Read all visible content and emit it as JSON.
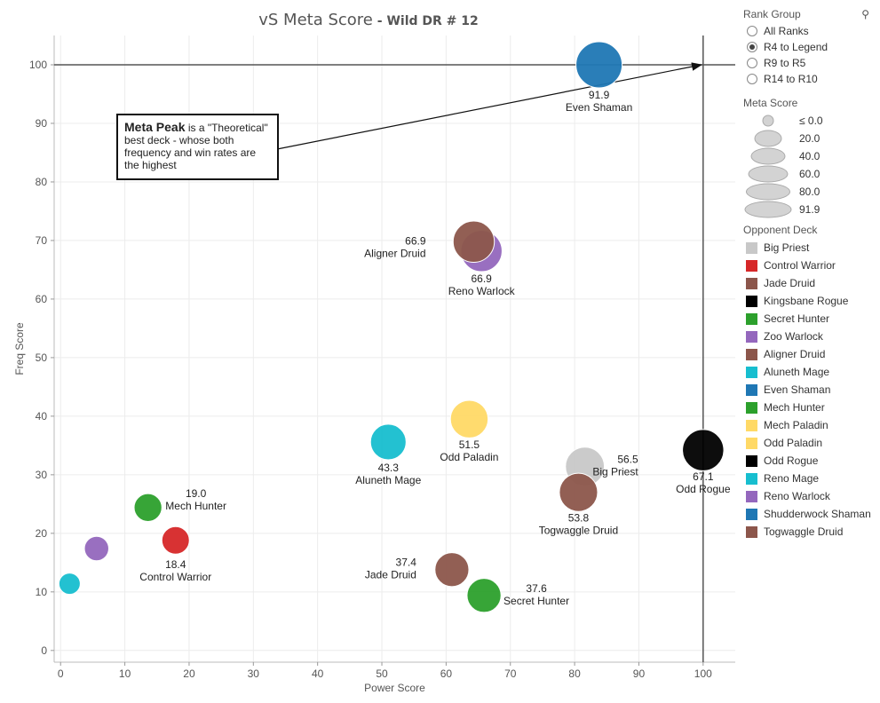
{
  "title": {
    "main": "vS Meta Score",
    "sub": " - Wild DR # 12"
  },
  "annotation": {
    "bold": "Meta Peak",
    "text": " is a \"Theoretical\" best deck - whose both frequency and win rates are the highest"
  },
  "legend": {
    "rank_group": {
      "title": "Rank Group",
      "options": [
        {
          "label": "All Ranks",
          "selected": false
        },
        {
          "label": "R4 to Legend",
          "selected": true
        },
        {
          "label": "R9 to R5",
          "selected": false
        },
        {
          "label": "R14 to R10",
          "selected": false
        }
      ]
    },
    "meta_score": {
      "title": "Meta Score",
      "entries": [
        "≤ 0.0",
        "20.0",
        "40.0",
        "60.0",
        "80.0",
        "91.9"
      ]
    },
    "opponent_deck": {
      "title": "Opponent Deck",
      "entries": [
        {
          "name": "Big Priest",
          "color": "#c8c8c8"
        },
        {
          "name": "Control Warrior",
          "color": "#d62728"
        },
        {
          "name": "Jade Druid",
          "color": "#8c564b"
        },
        {
          "name": "Kingsbane Rogue",
          "color": "#000000"
        },
        {
          "name": "Secret Hunter",
          "color": "#2ca02c"
        },
        {
          "name": "Zoo Warlock",
          "color": "#9467bd"
        },
        {
          "name": "Aligner Druid",
          "color": "#8c564b"
        },
        {
          "name": "Aluneth Mage",
          "color": "#17becf"
        },
        {
          "name": "Even Shaman",
          "color": "#1f77b4"
        },
        {
          "name": "Mech Hunter",
          "color": "#2ca02c"
        },
        {
          "name": "Mech Paladin",
          "color": "#ffd966"
        },
        {
          "name": "Odd Paladin",
          "color": "#ffd966"
        },
        {
          "name": "Odd Rogue",
          "color": "#000000"
        },
        {
          "name": "Reno Mage",
          "color": "#17becf"
        },
        {
          "name": "Reno Warlock",
          "color": "#9467bd"
        },
        {
          "name": "Shudderwock Shaman",
          "color": "#1f77b4"
        },
        {
          "name": "Togwaggle Druid",
          "color": "#8c564b"
        }
      ]
    }
  },
  "chart_data": {
    "type": "scatter",
    "title": "vS Meta Score - Wild DR # 12",
    "xlabel": "Power Score",
    "ylabel": "Freq Score",
    "xlim": [
      -1,
      105
    ],
    "ylim": [
      -2,
      105
    ],
    "xticks": [
      0,
      10,
      20,
      30,
      40,
      50,
      60,
      70,
      80,
      90,
      100
    ],
    "yticks": [
      0,
      10,
      20,
      30,
      40,
      50,
      60,
      70,
      80,
      90,
      100
    ],
    "grid": true,
    "reference_lines": {
      "x": 100,
      "y": 100
    },
    "points": [
      {
        "deck": "Even Shaman",
        "x": 83.8,
        "y": 100.0,
        "meta": 91.9,
        "color": "#1f77b4",
        "labeled": true
      },
      {
        "deck": "Reno Warlock",
        "x": 65.5,
        "y": 68.2,
        "meta": 66.9,
        "color": "#9467bd",
        "labeled": true
      },
      {
        "deck": "Aligner Druid",
        "x": 64.3,
        "y": 69.8,
        "meta": 66.9,
        "color": "#8c564b",
        "labeled": true
      },
      {
        "deck": "Odd Paladin",
        "x": 63.6,
        "y": 39.5,
        "meta": 51.5,
        "color": "#ffd966",
        "labeled": true
      },
      {
        "deck": "Aluneth Mage",
        "x": 51.0,
        "y": 35.6,
        "meta": 43.3,
        "color": "#17becf",
        "labeled": true
      },
      {
        "deck": "Odd Rogue",
        "x": 100.0,
        "y": 34.2,
        "meta": 67.1,
        "color": "#000000",
        "labeled": true
      },
      {
        "deck": "Big Priest",
        "x": 81.6,
        "y": 31.4,
        "meta": 56.5,
        "color": "#c8c8c8",
        "labeled": true
      },
      {
        "deck": "Togwaggle Druid",
        "x": 80.6,
        "y": 27.0,
        "meta": 53.8,
        "color": "#8c564b",
        "labeled": true
      },
      {
        "deck": "Mech Hunter",
        "x": 13.6,
        "y": 24.4,
        "meta": 19.0,
        "color": "#2ca02c",
        "labeled": true
      },
      {
        "deck": "Control Warrior",
        "x": 17.9,
        "y": 18.8,
        "meta": 18.4,
        "color": "#d62728",
        "labeled": true
      },
      {
        "deck": "Zoo Warlock",
        "x": 5.6,
        "y": 17.4,
        "meta": 11.5,
        "color": "#9467bd",
        "labeled": false
      },
      {
        "deck": "Reno Mage",
        "x": 1.4,
        "y": 11.4,
        "meta": 6.4,
        "color": "#17becf",
        "labeled": false
      },
      {
        "deck": "Jade Druid",
        "x": 60.9,
        "y": 13.8,
        "meta": 37.4,
        "color": "#8c564b",
        "labeled": true
      },
      {
        "deck": "Secret Hunter",
        "x": 65.9,
        "y": 9.4,
        "meta": 37.6,
        "color": "#2ca02c",
        "labeled": true
      }
    ]
  }
}
